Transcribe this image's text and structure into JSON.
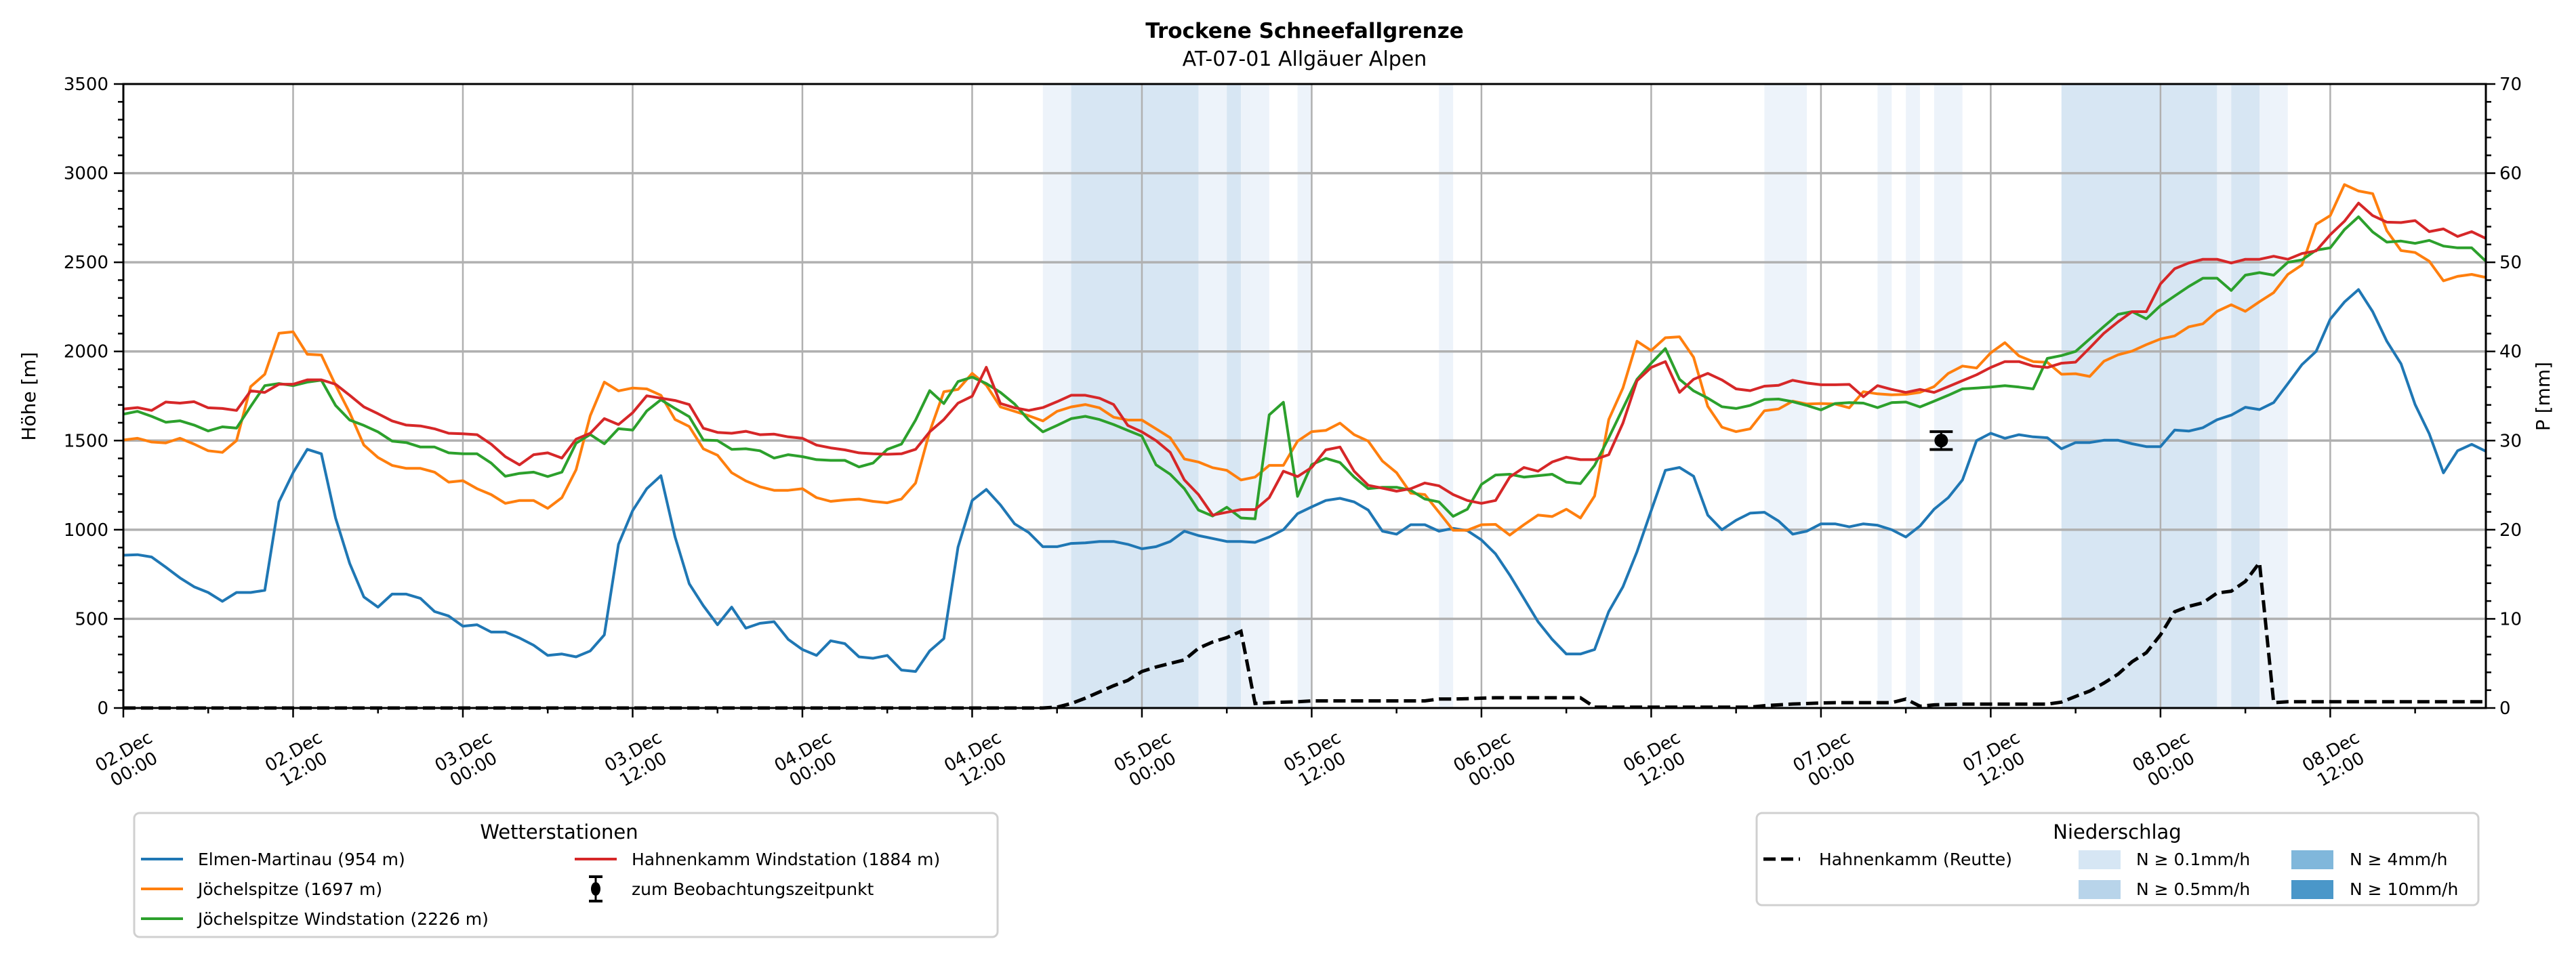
{
  "chart_data": {
    "type": "line",
    "title": "Trockene Schneefallgrenze",
    "subtitle": "AT-07-01 Allgäuer Alpen",
    "ylabel": "Höhe [m]",
    "y2label": "P [mm]",
    "ylim": [
      0,
      3500
    ],
    "y2lim": [
      0,
      70
    ],
    "yticks": [
      "0",
      "500",
      "1000",
      "1500",
      "2000",
      "2500",
      "3000",
      "3500"
    ],
    "y2ticks": [
      "0",
      "10",
      "20",
      "30",
      "40",
      "50",
      "60",
      "70"
    ],
    "xlim_hours": [
      0,
      167
    ],
    "x_start_hour": 0,
    "x_step_hours": 1,
    "xticks": [
      {
        "hour": 0,
        "date": "02.Dec",
        "time": "00:00"
      },
      {
        "hour": 12,
        "date": "02.Dec",
        "time": "12:00"
      },
      {
        "hour": 24,
        "date": "03.Dec",
        "time": "00:00"
      },
      {
        "hour": 36,
        "date": "03.Dec",
        "time": "12:00"
      },
      {
        "hour": 48,
        "date": "04.Dec",
        "time": "00:00"
      },
      {
        "hour": 60,
        "date": "04.Dec",
        "time": "12:00"
      },
      {
        "hour": 72,
        "date": "05.Dec",
        "time": "00:00"
      },
      {
        "hour": 84,
        "date": "05.Dec",
        "time": "12:00"
      },
      {
        "hour": 96,
        "date": "06.Dec",
        "time": "00:00"
      },
      {
        "hour": 108,
        "date": "06.Dec",
        "time": "12:00"
      },
      {
        "hour": 120,
        "date": "07.Dec",
        "time": "00:00"
      },
      {
        "hour": 132,
        "date": "07.Dec",
        "time": "12:00"
      },
      {
        "hour": 144,
        "date": "08.Dec",
        "time": "00:00"
      },
      {
        "hour": 156,
        "date": "08.Dec",
        "time": "12:00"
      }
    ],
    "grid": true,
    "series": [
      {
        "name": "Elmen-Martinau (954 m)",
        "color": "#1f77b4",
        "values": [
          857,
          860,
          847,
          790,
          730,
          680,
          648,
          598,
          648,
          648,
          660,
          1156,
          1320,
          1451,
          1426,
          1066,
          811,
          623,
          566,
          639,
          639,
          615,
          541,
          516,
          459,
          467,
          426,
          426,
          393,
          352,
          295,
          303,
          287,
          320,
          410,
          918,
          1107,
          1230,
          1303,
          959,
          697,
          574,
          467,
          566,
          448,
          475,
          484,
          385,
          328,
          295,
          377,
          361,
          287,
          279,
          295,
          213,
          205,
          320,
          389,
          902,
          1164,
          1226,
          1139,
          1033,
          984,
          905,
          905,
          923,
          926,
          934,
          934,
          918,
          893,
          905,
          934,
          992,
          967,
          951,
          934,
          934,
          929,
          959,
          1000,
          1090,
          1128,
          1164,
          1176,
          1156,
          1110,
          992,
          975,
          1028,
          1028,
          992,
          1008,
          995,
          943,
          864,
          746,
          615,
          484,
          385,
          303,
          303,
          328,
          541,
          680,
          877,
          1107,
          1333,
          1349,
          1300,
          1082,
          1000,
          1053,
          1093,
          1098,
          1049,
          975,
          992,
          1033,
          1033,
          1016,
          1033,
          1025,
          1000,
          959,
          1021,
          1115,
          1180,
          1279,
          1500,
          1541,
          1513,
          1533,
          1521,
          1516,
          1454,
          1489,
          1489,
          1502,
          1502,
          1482,
          1466,
          1466,
          1559,
          1553,
          1572,
          1617,
          1643,
          1687,
          1674,
          1713,
          1819,
          1926,
          2000,
          2181,
          2277,
          2347,
          2223,
          2057,
          1931,
          1702,
          1538,
          1319,
          1443,
          1479,
          1440
        ]
      },
      {
        "name": "Jöchelspitze (1697 m)",
        "color": "#ff7f0e",
        "values": [
          1503,
          1513,
          1492,
          1487,
          1513,
          1480,
          1443,
          1434,
          1500,
          1803,
          1872,
          2102,
          2110,
          1984,
          1980,
          1811,
          1656,
          1475,
          1405,
          1361,
          1344,
          1344,
          1323,
          1267,
          1275,
          1230,
          1197,
          1148,
          1164,
          1164,
          1120,
          1180,
          1336,
          1639,
          1828,
          1779,
          1795,
          1790,
          1754,
          1618,
          1579,
          1454,
          1418,
          1320,
          1274,
          1241,
          1221,
          1221,
          1230,
          1180,
          1159,
          1167,
          1172,
          1159,
          1151,
          1172,
          1262,
          1550,
          1774,
          1787,
          1877,
          1811,
          1689,
          1664,
          1639,
          1610,
          1664,
          1689,
          1702,
          1684,
          1631,
          1615,
          1615,
          1566,
          1516,
          1397,
          1380,
          1348,
          1333,
          1279,
          1295,
          1361,
          1361,
          1497,
          1550,
          1557,
          1598,
          1533,
          1497,
          1385,
          1320,
          1205,
          1197,
          1098,
          997,
          997,
          1028,
          1030,
          970,
          1028,
          1082,
          1074,
          1115,
          1066,
          1189,
          1618,
          1795,
          2057,
          2005,
          2077,
          2082,
          1967,
          1692,
          1575,
          1550,
          1566,
          1667,
          1677,
          1721,
          1705,
          1708,
          1705,
          1684,
          1774,
          1762,
          1757,
          1759,
          1770,
          1803,
          1877,
          1918,
          1907,
          1992,
          2049,
          1975,
          1943,
          1939,
          1872,
          1875,
          1860,
          1945,
          1981,
          2002,
          2038,
          2070,
          2087,
          2138,
          2155,
          2225,
          2262,
          2225,
          2279,
          2330,
          2432,
          2485,
          2713,
          2762,
          2936,
          2900,
          2885,
          2677,
          2566,
          2555,
          2506,
          2396,
          2421,
          2432,
          2415
        ]
      },
      {
        "name": "Jöchelspitze Windstation (2226 m)",
        "color": "#2ca02c",
        "values": [
          1648,
          1664,
          1636,
          1603,
          1611,
          1587,
          1554,
          1577,
          1570,
          1692,
          1808,
          1820,
          1808,
          1828,
          1839,
          1697,
          1615,
          1585,
          1549,
          1497,
          1489,
          1464,
          1464,
          1431,
          1426,
          1426,
          1374,
          1300,
          1316,
          1323,
          1298,
          1323,
          1485,
          1534,
          1482,
          1567,
          1559,
          1666,
          1729,
          1680,
          1634,
          1503,
          1500,
          1451,
          1454,
          1443,
          1402,
          1421,
          1410,
          1393,
          1389,
          1389,
          1352,
          1374,
          1451,
          1480,
          1615,
          1780,
          1708,
          1831,
          1856,
          1820,
          1770,
          1705,
          1615,
          1549,
          1585,
          1623,
          1636,
          1618,
          1590,
          1557,
          1525,
          1364,
          1311,
          1230,
          1110,
          1077,
          1126,
          1066,
          1061,
          1644,
          1715,
          1187,
          1365,
          1400,
          1377,
          1295,
          1230,
          1238,
          1238,
          1221,
          1172,
          1156,
          1075,
          1115,
          1254,
          1307,
          1311,
          1295,
          1303,
          1311,
          1267,
          1259,
          1361,
          1516,
          1680,
          1844,
          1934,
          2016,
          1844,
          1779,
          1738,
          1690,
          1680,
          1697,
          1730,
          1733,
          1718,
          1697,
          1672,
          1708,
          1713,
          1710,
          1685,
          1713,
          1716,
          1689,
          1721,
          1754,
          1790,
          1795,
          1800,
          1808,
          1800,
          1790,
          1961,
          1977,
          2000,
          2070,
          2140,
          2208,
          2223,
          2183,
          2257,
          2311,
          2364,
          2411,
          2411,
          2342,
          2428,
          2442,
          2428,
          2500,
          2513,
          2568,
          2581,
          2683,
          2755,
          2670,
          2613,
          2619,
          2606,
          2623,
          2591,
          2581,
          2581,
          2506
        ]
      },
      {
        "name": "Hahnenkamm Windstation (1884 m)",
        "color": "#d62728",
        "values": [
          1677,
          1685,
          1669,
          1716,
          1710,
          1718,
          1684,
          1680,
          1669,
          1779,
          1770,
          1816,
          1816,
          1841,
          1841,
          1816,
          1754,
          1689,
          1651,
          1610,
          1587,
          1582,
          1566,
          1541,
          1538,
          1533,
          1480,
          1410,
          1364,
          1421,
          1431,
          1402,
          1508,
          1541,
          1623,
          1590,
          1656,
          1751,
          1738,
          1725,
          1702,
          1569,
          1546,
          1541,
          1552,
          1533,
          1536,
          1521,
          1513,
          1475,
          1459,
          1448,
          1431,
          1426,
          1423,
          1426,
          1451,
          1549,
          1618,
          1710,
          1749,
          1911,
          1708,
          1684,
          1669,
          1685,
          1718,
          1754,
          1754,
          1738,
          1702,
          1585,
          1549,
          1500,
          1434,
          1279,
          1197,
          1082,
          1098,
          1113,
          1113,
          1180,
          1328,
          1298,
          1349,
          1448,
          1464,
          1328,
          1249,
          1233,
          1216,
          1230,
          1262,
          1246,
          1197,
          1164,
          1148,
          1164,
          1295,
          1349,
          1328,
          1380,
          1407,
          1393,
          1393,
          1421,
          1598,
          1836,
          1910,
          1943,
          1770,
          1844,
          1877,
          1840,
          1790,
          1780,
          1805,
          1810,
          1838,
          1823,
          1813,
          1813,
          1815,
          1746,
          1808,
          1787,
          1770,
          1787,
          1770,
          1803,
          1836,
          1869,
          1910,
          1943,
          1943,
          1918,
          1910,
          1934,
          1940,
          2020,
          2102,
          2166,
          2223,
          2223,
          2379,
          2464,
          2496,
          2517,
          2517,
          2496,
          2517,
          2517,
          2534,
          2517,
          2549,
          2564,
          2655,
          2730,
          2832,
          2762,
          2725,
          2723,
          2734,
          2672,
          2687,
          2645,
          2672,
          2634
        ]
      }
    ],
    "observation": {
      "label": "zum Beobachtungszeitpunkt",
      "hour": 128.5,
      "value": 1500,
      "error": 50
    },
    "precipitation": {
      "name": "Hahnenkamm (Reutte)",
      "axis": "right",
      "values": [
        0,
        0,
        0,
        0,
        0,
        0,
        0,
        0,
        0,
        0,
        0,
        0,
        0,
        0,
        0,
        0,
        0,
        0,
        0,
        0,
        0,
        0,
        0,
        0,
        0,
        0,
        0,
        0,
        0,
        0,
        0,
        0,
        0,
        0,
        0,
        0,
        0,
        0,
        0,
        0,
        0,
        0,
        0,
        0,
        0,
        0,
        0,
        0,
        0,
        0,
        0,
        0,
        0,
        0,
        0,
        0,
        0,
        0,
        0,
        0,
        0,
        0,
        0,
        0,
        0,
        0,
        0.1,
        0.5,
        1.1,
        1.8,
        2.5,
        3.1,
        4.1,
        4.6,
        5.0,
        5.4,
        6.7,
        7.4,
        7.9,
        8.6,
        0.5,
        0.6,
        0.65,
        0.7,
        0.8,
        0.8,
        0.8,
        0.8,
        0.8,
        0.8,
        0.8,
        0.8,
        0.8,
        1.0,
        1.0,
        1.05,
        1.1,
        1.15,
        1.15,
        1.15,
        1.15,
        1.15,
        1.15,
        1.15,
        0.1,
        0.1,
        0.1,
        0.1,
        0.1,
        0.1,
        0.1,
        0.1,
        0.1,
        0.1,
        0.1,
        0.1,
        0.26,
        0.35,
        0.45,
        0.5,
        0.56,
        0.6,
        0.6,
        0.6,
        0.6,
        0.6,
        1.0,
        0.2,
        0.35,
        0.4,
        0.43,
        0.43,
        0.43,
        0.43,
        0.43,
        0.43,
        0.43,
        0.66,
        1.3,
        1.9,
        2.8,
        3.8,
        5.2,
        6.2,
        8.2,
        10.8,
        11.4,
        11.8,
        12.9,
        13.1,
        14.2,
        16.3,
        0.6,
        0.7,
        0.7,
        0.7,
        0.7,
        0.7,
        0.7,
        0.7,
        0.7,
        0.7,
        0.7,
        0.7,
        0.7,
        0.7,
        0.7,
        0.7
      ]
    },
    "precip_bands": [
      {
        "start": 65,
        "end": 67,
        "level": 0
      },
      {
        "start": 67,
        "end": 76,
        "level": 1
      },
      {
        "start": 76,
        "end": 78,
        "level": 0
      },
      {
        "start": 78,
        "end": 79,
        "level": 1
      },
      {
        "start": 79,
        "end": 81,
        "level": 0
      },
      {
        "start": 83,
        "end": 84,
        "level": 0
      },
      {
        "start": 93,
        "end": 94,
        "level": 0
      },
      {
        "start": 116,
        "end": 119,
        "level": 0
      },
      {
        "start": 124,
        "end": 125,
        "level": 0
      },
      {
        "start": 126,
        "end": 127,
        "level": 0
      },
      {
        "start": 128,
        "end": 130,
        "level": 0
      },
      {
        "start": 137,
        "end": 148,
        "level": 1
      },
      {
        "start": 148,
        "end": 149,
        "level": 0
      },
      {
        "start": 149,
        "end": 151,
        "level": 1
      },
      {
        "start": 151,
        "end": 153,
        "level": 0
      }
    ],
    "band_colors_plot": [
      "#edf3fa",
      "#d7e6f3",
      "#a9cde6",
      "#7fb3d9"
    ],
    "legend_stations": {
      "title": "Wetterstationen",
      "placement": "bottom-left"
    },
    "legend_precip": {
      "title": "Niederschlag",
      "placement": "bottom-right",
      "levels": [
        {
          "label": "N ≥ 0.1mm/h",
          "color": "#d6e6f4"
        },
        {
          "label": "N ≥ 0.5mm/h",
          "color": "#b8d4ea"
        },
        {
          "label": "N ≥ 4mm/h",
          "color": "#80b7db"
        },
        {
          "label": "N ≥ 10mm/h",
          "color": "#4a97c9"
        }
      ]
    }
  }
}
